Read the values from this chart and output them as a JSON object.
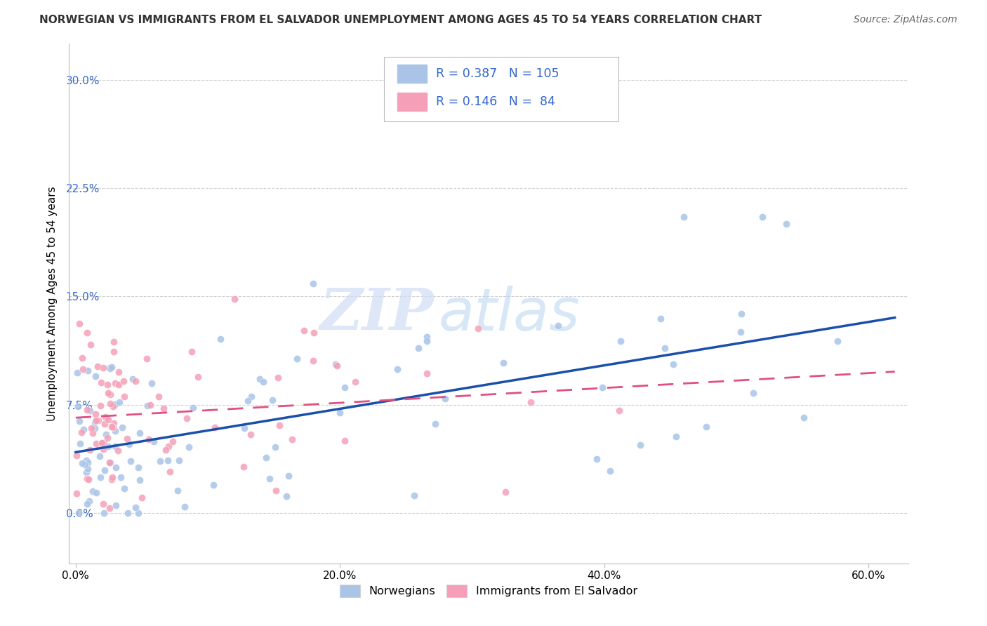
{
  "title": "NORWEGIAN VS IMMIGRANTS FROM EL SALVADOR UNEMPLOYMENT AMONG AGES 45 TO 54 YEARS CORRELATION CHART",
  "source": "Source: ZipAtlas.com",
  "ylabel": "Unemployment Among Ages 45 to 54 years",
  "xlabel_ticks": [
    "0.0%",
    "20.0%",
    "40.0%",
    "60.0%"
  ],
  "xlabel_vals": [
    0.0,
    0.2,
    0.4,
    0.6
  ],
  "ylabel_ticks": [
    "0.0%",
    "7.5%",
    "15.0%",
    "22.5%",
    "30.0%"
  ],
  "ylabel_vals": [
    0.0,
    0.075,
    0.15,
    0.225,
    0.3
  ],
  "xlim": [
    -0.005,
    0.63
  ],
  "ylim": [
    -0.035,
    0.325
  ],
  "norwegian_color": "#aac4e8",
  "salvador_color": "#f5a0b8",
  "norwegian_R": 0.387,
  "norwegian_N": 105,
  "salvador_R": 0.146,
  "salvador_N": 84,
  "legend_color": "#3366cc",
  "watermark_zip": "ZIP",
  "watermark_atlas": "atlas",
  "background_color": "#ffffff",
  "grid_color": "#cccccc",
  "norwegian_line_color": "#1a4faa",
  "salvador_line_color": "#e05080",
  "title_fontsize": 11,
  "source_fontsize": 10,
  "tick_fontsize": 11
}
